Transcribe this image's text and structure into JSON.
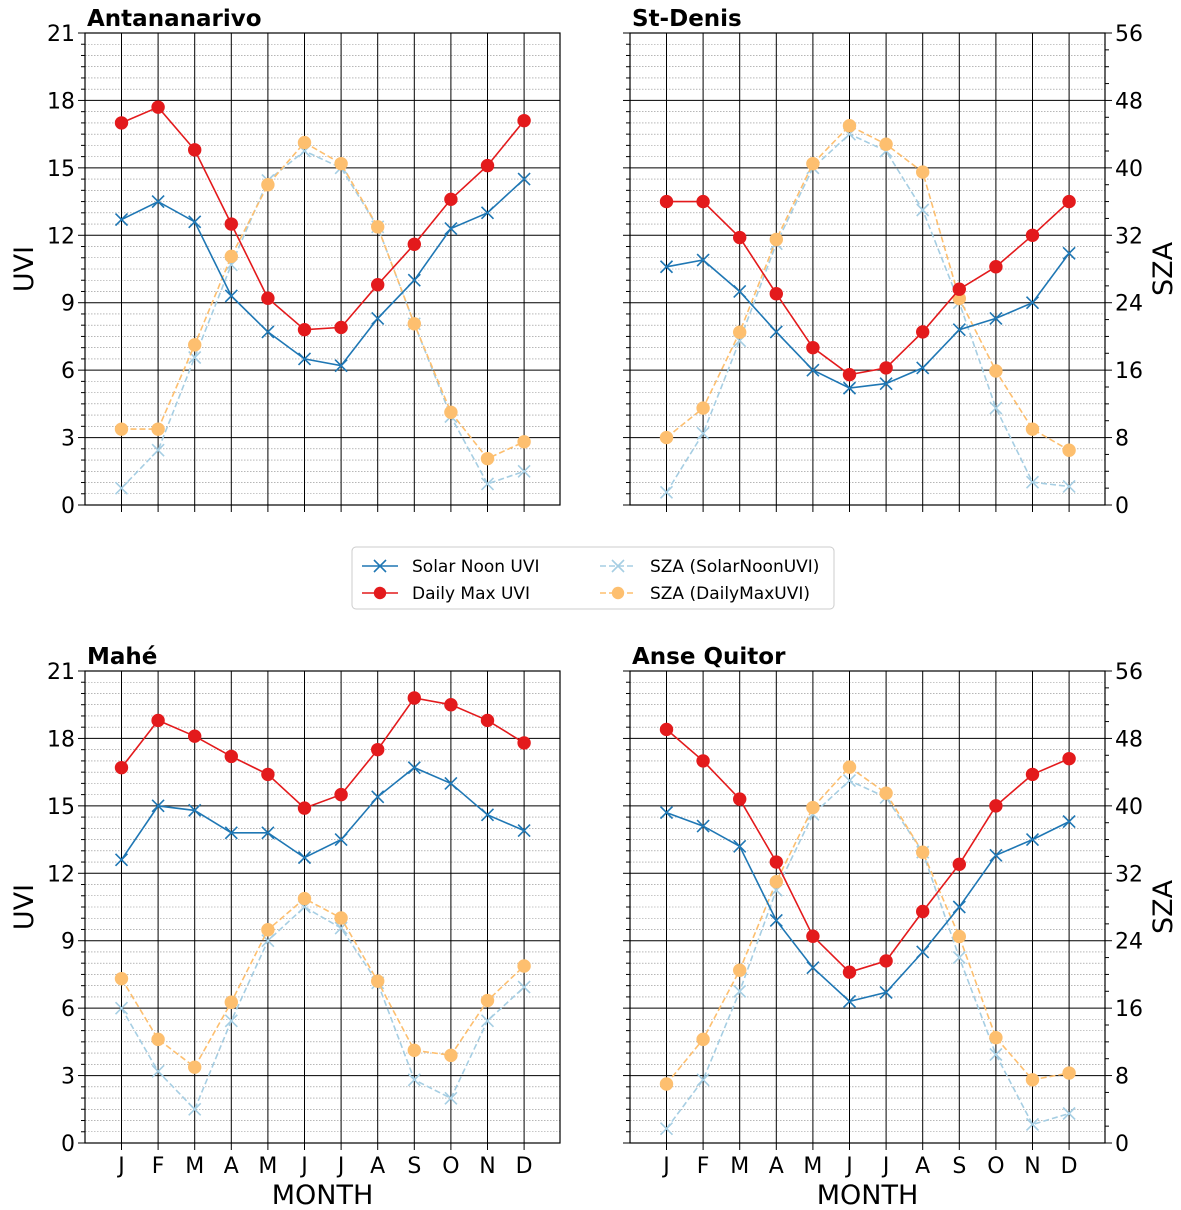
{
  "chart_data": {
    "type": "line",
    "months": [
      "J",
      "F",
      "M",
      "A",
      "M",
      "J",
      "J",
      "A",
      "S",
      "O",
      "N",
      "D"
    ],
    "xlabel": "MONTH",
    "ylabel_left": "UVI",
    "ylabel_right": "SZA",
    "uvi_lim": [
      0,
      21
    ],
    "uvi_ticks": [
      "0",
      "3",
      "6",
      "9",
      "12",
      "15",
      "18",
      "21"
    ],
    "sza_lim": [
      0,
      56
    ],
    "sza_ticks": [
      "0",
      "8",
      "16",
      "24",
      "32",
      "40",
      "48",
      "56"
    ],
    "grid": true,
    "legend": {
      "placement": "center",
      "entries": [
        {
          "name": "Solar Noon UVI",
          "color": "#1f77b4",
          "marker": "x",
          "dash": false
        },
        {
          "name": "Daily Max UVI",
          "color": "#e31a1c",
          "marker": "o",
          "dash": false
        },
        {
          "name": "SZA (SolarNoonUVI)",
          "color": "#a6cee3",
          "marker": "x",
          "dash": true
        },
        {
          "name": "SZA (DailyMaxUVI)",
          "color": "#fdbf6f",
          "marker": "o",
          "dash": true
        }
      ]
    },
    "panels": [
      {
        "title": "Antananarivo",
        "series": [
          {
            "name": "Solar Noon UVI",
            "values": [
              12.7,
              13.5,
              12.6,
              9.3,
              7.7,
              6.5,
              6.2,
              8.3,
              10.0,
              12.3,
              13.0,
              14.5
            ]
          },
          {
            "name": "Daily Max UVI",
            "values": [
              17.0,
              17.7,
              15.8,
              12.5,
              9.2,
              7.8,
              7.9,
              9.8,
              11.6,
              13.6,
              15.1,
              17.1
            ]
          },
          {
            "name": "SZA (SolarNoonUVI)",
            "values": [
              2.0,
              6.5,
              17.5,
              28.5,
              38.5,
              42.0,
              40.0,
              33.0,
              21.5,
              10.5,
              2.5,
              4.0
            ]
          },
          {
            "name": "SZA (DailyMaxUVI)",
            "values": [
              9.0,
              9.0,
              19.0,
              29.5,
              38.0,
              43.0,
              40.5,
              33.0,
              21.5,
              11.0,
              5.5,
              7.5
            ]
          }
        ]
      },
      {
        "title": "St-Denis",
        "series": [
          {
            "name": "Solar Noon UVI",
            "values": [
              10.6,
              10.9,
              9.5,
              7.7,
              6.0,
              5.2,
              5.4,
              6.1,
              7.8,
              8.3,
              9.0,
              11.2
            ]
          },
          {
            "name": "Daily Max UVI",
            "values": [
              13.5,
              13.5,
              11.9,
              9.4,
              7.0,
              5.8,
              6.1,
              7.7,
              9.6,
              10.6,
              12.0,
              13.5
            ]
          },
          {
            "name": "SZA (SolarNoonUVI)",
            "values": [
              1.5,
              8.5,
              19.5,
              31.0,
              40.0,
              44.0,
              42.0,
              35.0,
              24.0,
              11.5,
              2.7,
              2.2
            ]
          },
          {
            "name": "SZA (DailyMaxUVI)",
            "values": [
              8.0,
              11.5,
              20.5,
              31.5,
              40.5,
              45.0,
              42.8,
              39.5,
              24.5,
              15.9,
              9.0,
              6.5
            ]
          }
        ]
      },
      {
        "title": "Mahé",
        "series": [
          {
            "name": "Solar Noon UVI",
            "values": [
              12.6,
              15.0,
              14.8,
              13.8,
              13.8,
              12.7,
              13.5,
              15.4,
              16.7,
              16.0,
              14.6,
              13.9
            ]
          },
          {
            "name": "Daily Max UVI",
            "values": [
              16.7,
              18.8,
              18.1,
              17.2,
              16.4,
              14.9,
              15.5,
              17.5,
              19.8,
              19.5,
              18.8,
              17.8
            ]
          },
          {
            "name": "SZA (SolarNoonUVI)",
            "values": [
              16.0,
              8.5,
              4.0,
              14.5,
              24.0,
              28.0,
              25.5,
              19.0,
              7.5,
              5.3,
              14.5,
              18.5
            ]
          },
          {
            "name": "SZA (DailyMaxUVI)",
            "values": [
              19.5,
              12.3,
              9.0,
              16.7,
              25.3,
              29.0,
              26.7,
              19.2,
              11.0,
              10.4,
              16.9,
              21.0
            ]
          }
        ]
      },
      {
        "title": "Anse Quitor",
        "series": [
          {
            "name": "Solar Noon UVI",
            "values": [
              14.7,
              14.1,
              13.2,
              9.9,
              7.8,
              6.3,
              6.7,
              8.5,
              10.5,
              12.8,
              13.5,
              14.3
            ]
          },
          {
            "name": "Daily Max UVI",
            "values": [
              18.4,
              17.0,
              15.3,
              12.5,
              9.2,
              7.6,
              8.1,
              10.3,
              12.4,
              15.0,
              16.4,
              17.1
            ]
          },
          {
            "name": "SZA (SolarNoonUVI)",
            "values": [
              1.7,
              7.5,
              18.0,
              30.0,
              39.0,
              43.0,
              41.0,
              34.5,
              22.0,
              10.5,
              2.2,
              3.5
            ]
          },
          {
            "name": "SZA (DailyMaxUVI)",
            "values": [
              7.0,
              12.3,
              20.5,
              31.0,
              39.8,
              44.6,
              41.5,
              34.5,
              24.5,
              12.5,
              7.5,
              8.3
            ]
          }
        ]
      }
    ]
  }
}
